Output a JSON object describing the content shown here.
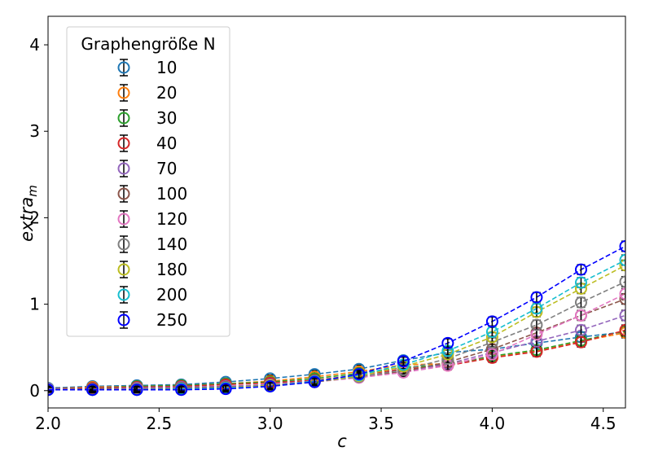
{
  "chart_data": {
    "type": "line",
    "xlabel": "c",
    "ylabel_main": "extra",
    "ylabel_sub": "m",
    "xlim": [
      2.0,
      4.6
    ],
    "ylim": [
      -0.2,
      4.33
    ],
    "xticks": [
      "2.0",
      "2.5",
      "3.0",
      "3.5",
      "4.0",
      "4.5"
    ],
    "xtick_values": [
      2.0,
      2.5,
      3.0,
      3.5,
      4.0,
      4.5
    ],
    "yticks": [
      "0",
      "1",
      "2",
      "3",
      "4"
    ],
    "ytick_values": [
      0,
      1,
      2,
      3,
      4
    ],
    "legend_title": "Graphengröße N",
    "legend_position": "upper-left",
    "marker": "open-circle",
    "line_style": "dashed",
    "error_bars": true,
    "x": [
      2.0,
      2.2,
      2.4,
      2.6,
      2.8,
      3.0,
      3.2,
      3.4,
      3.6,
      3.8,
      4.0,
      4.2,
      4.4,
      4.6
    ],
    "series": [
      {
        "name": "10",
        "color": "#1f77b4",
        "values": [
          0.03,
          0.05,
          0.06,
          0.07,
          0.1,
          0.14,
          0.19,
          0.25,
          0.35,
          0.44,
          0.48,
          0.55,
          0.62,
          0.68
        ]
      },
      {
        "name": "20",
        "color": "#ff7f0e",
        "values": [
          0.02,
          0.04,
          0.05,
          0.06,
          0.08,
          0.11,
          0.16,
          0.22,
          0.3,
          0.31,
          0.39,
          0.46,
          0.57,
          0.67
        ]
      },
      {
        "name": "30",
        "color": "#2ca02c",
        "values": [
          0.02,
          0.03,
          0.05,
          0.06,
          0.08,
          0.1,
          0.14,
          0.2,
          0.27,
          0.3,
          0.4,
          0.47,
          0.58,
          0.69
        ]
      },
      {
        "name": "40",
        "color": "#d62728",
        "values": [
          0.02,
          0.03,
          0.04,
          0.05,
          0.07,
          0.09,
          0.12,
          0.18,
          0.25,
          0.29,
          0.38,
          0.45,
          0.56,
          0.7
        ]
      },
      {
        "name": "70",
        "color": "#9467bd",
        "values": [
          0.02,
          0.02,
          0.03,
          0.04,
          0.05,
          0.07,
          0.11,
          0.16,
          0.22,
          0.31,
          0.44,
          0.57,
          0.7,
          0.87
        ]
      },
      {
        "name": "100",
        "color": "#8c564b",
        "values": [
          0.01,
          0.02,
          0.02,
          0.03,
          0.04,
          0.06,
          0.1,
          0.16,
          0.22,
          0.33,
          0.48,
          0.67,
          0.87,
          1.06
        ]
      },
      {
        "name": "120",
        "color": "#e377c2",
        "values": [
          0.01,
          0.01,
          0.02,
          0.02,
          0.03,
          0.06,
          0.1,
          0.15,
          0.21,
          0.29,
          0.42,
          0.65,
          0.87,
          1.12
        ]
      },
      {
        "name": "140",
        "color": "#7f7f7f",
        "values": [
          0.01,
          0.01,
          0.02,
          0.02,
          0.03,
          0.06,
          0.1,
          0.16,
          0.24,
          0.37,
          0.56,
          0.76,
          1.02,
          1.26
        ]
      },
      {
        "name": "180",
        "color": "#bcbd22",
        "values": [
          0.01,
          0.01,
          0.01,
          0.02,
          0.03,
          0.06,
          0.1,
          0.17,
          0.28,
          0.42,
          0.62,
          0.91,
          1.18,
          1.45
        ]
      },
      {
        "name": "200",
        "color": "#17becf",
        "values": [
          0.01,
          0.01,
          0.01,
          0.02,
          0.03,
          0.05,
          0.11,
          0.18,
          0.3,
          0.46,
          0.68,
          0.95,
          1.25,
          1.51
        ]
      },
      {
        "name": "250",
        "color": "#0000ff",
        "values": [
          0.01,
          0.01,
          0.01,
          0.01,
          0.02,
          0.05,
          0.1,
          0.19,
          0.34,
          0.55,
          0.8,
          1.08,
          1.4,
          1.67
        ]
      }
    ]
  }
}
